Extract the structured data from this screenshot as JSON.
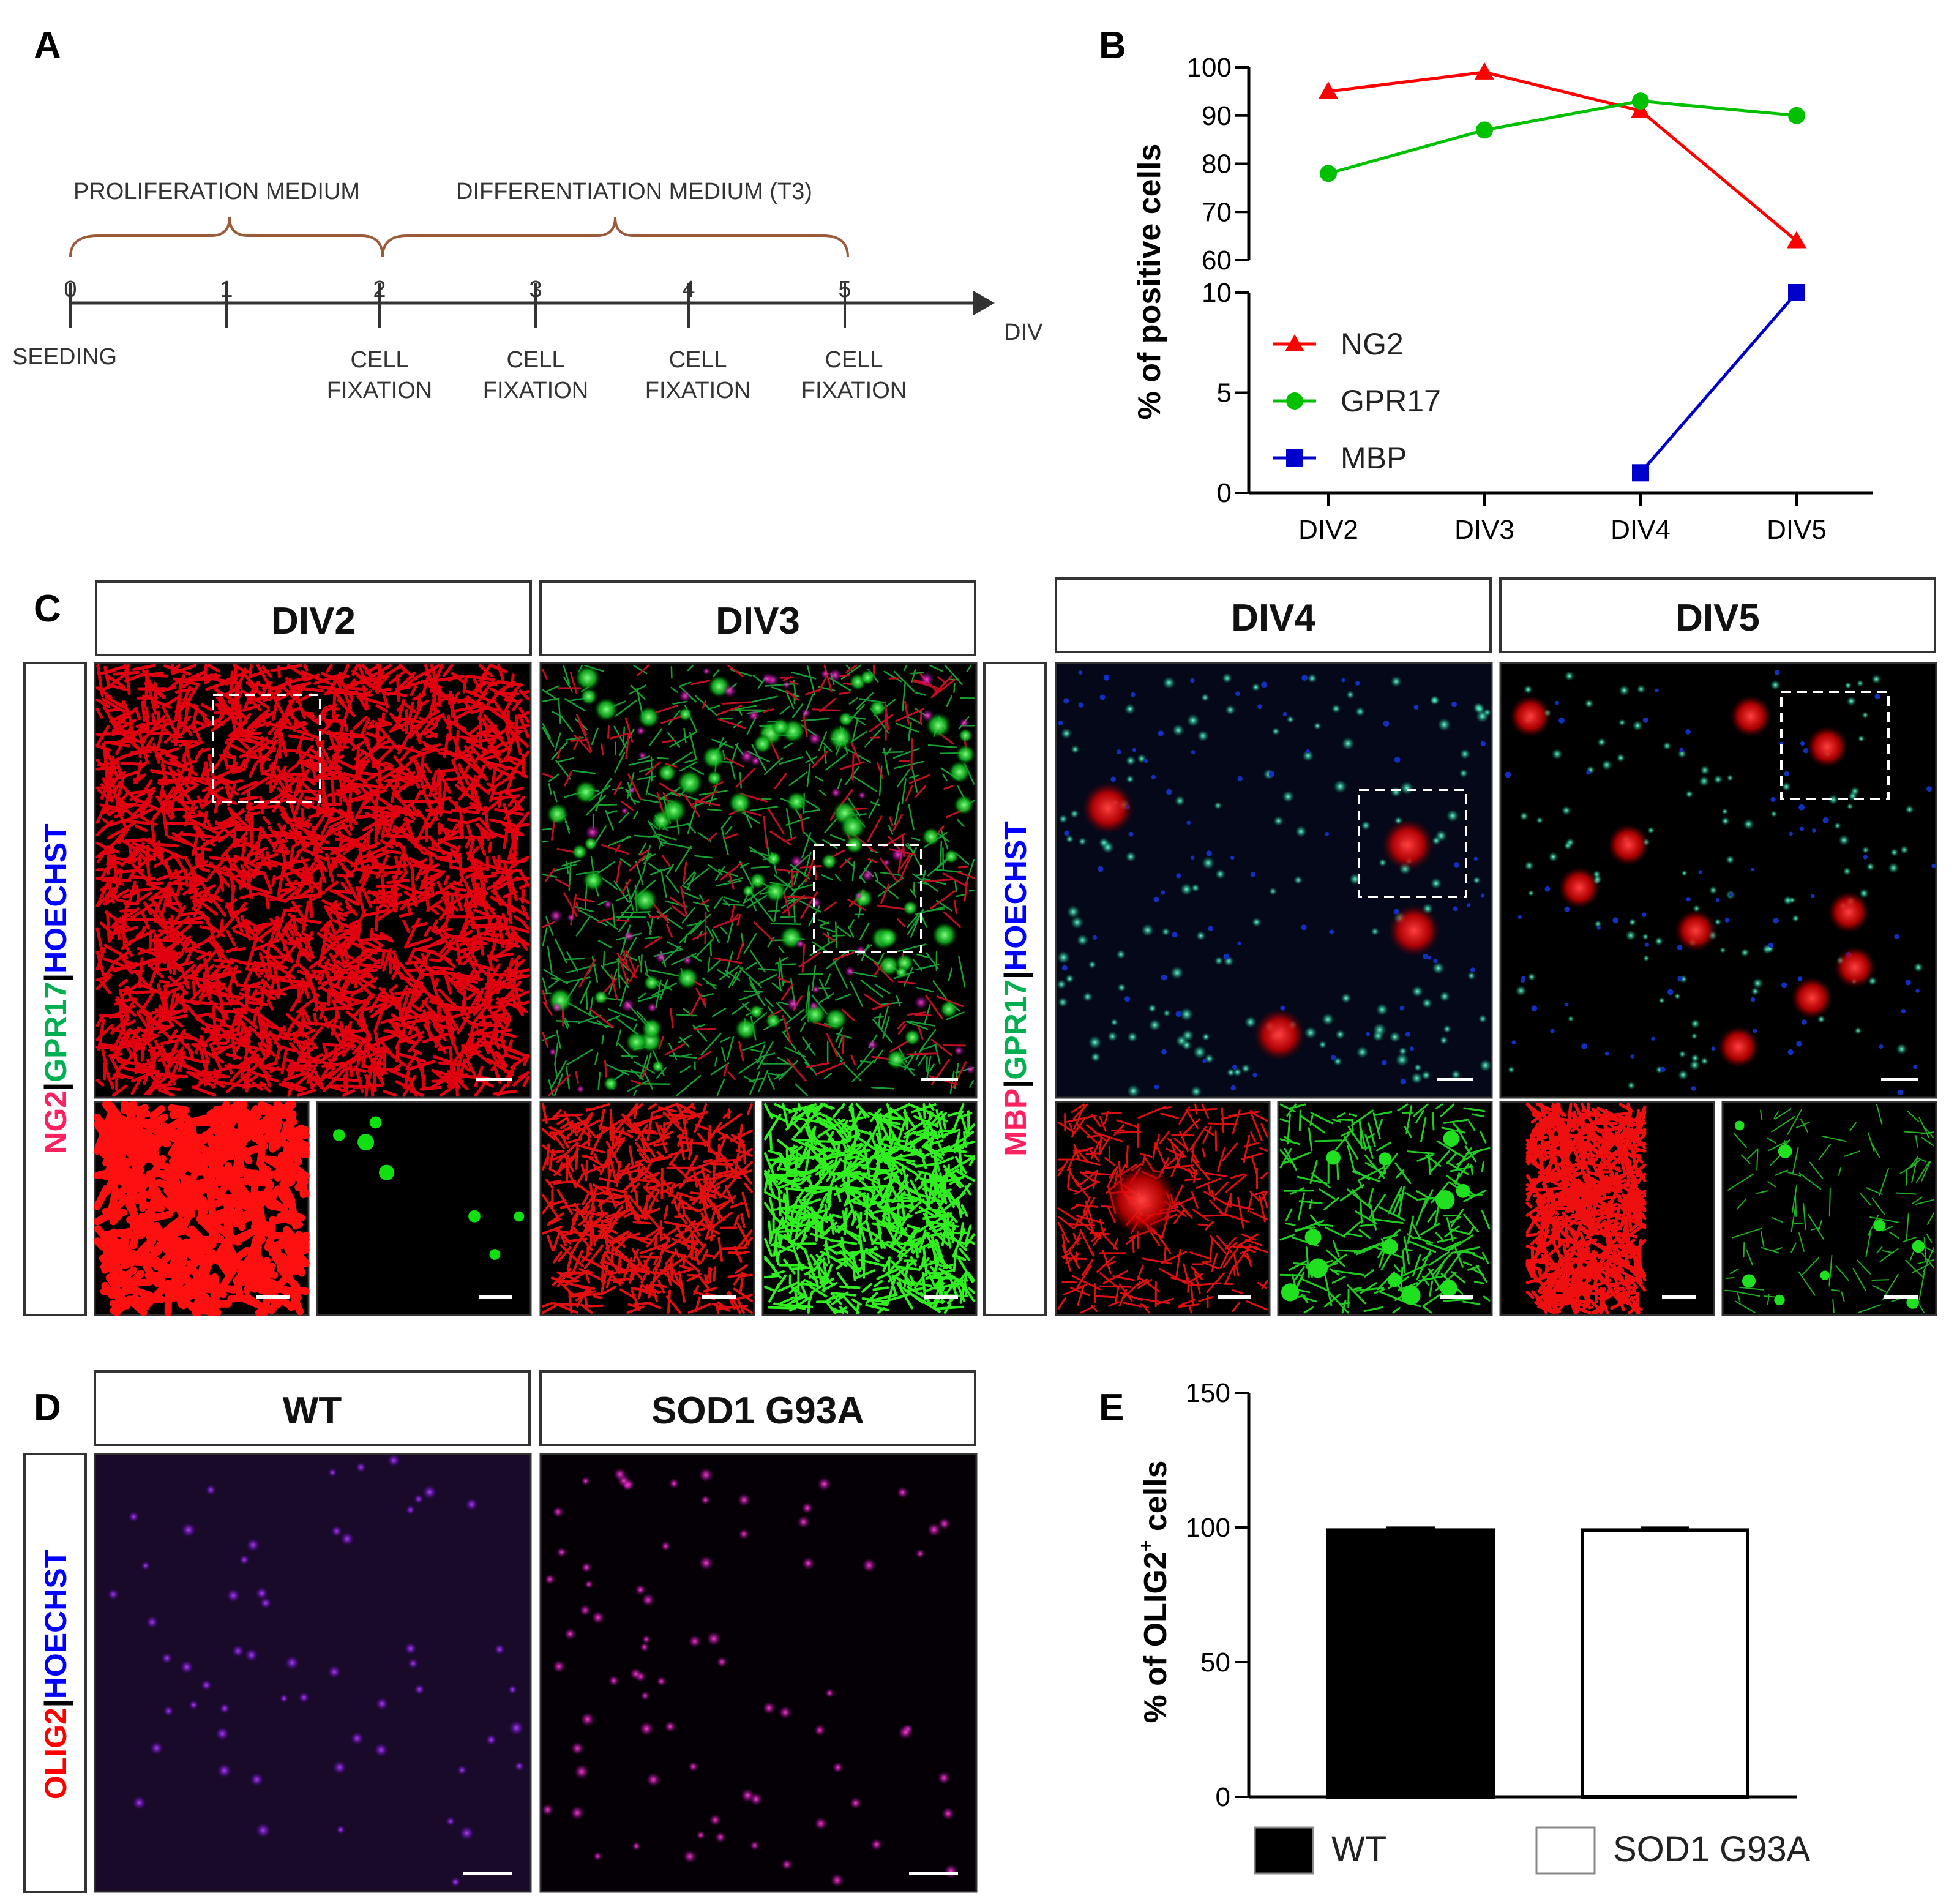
{
  "panel_letters": {
    "a": "A",
    "b": "B",
    "c": "C",
    "d": "D",
    "e": "E"
  },
  "colors": {
    "ng2": "#ff0000",
    "gpr17": "#00c000",
    "mbp": "#0000cc",
    "hoechst": "#0000ff",
    "brace": "#9b5a3a"
  },
  "timeline": {
    "proliferation_label": "PROLIFERATION MEDIUM",
    "differentiation_label": "DIFFERENTIATION MEDIUM (T3)",
    "ticks": [
      "0",
      "1",
      "2",
      "3",
      "4",
      "5"
    ],
    "axis_label": "DIV",
    "seeding_label": "SEEDING",
    "fixations": [
      {
        "line1": "CELL",
        "line2": "FIXATION"
      },
      {
        "line1": "CELL",
        "line2": "FIXATION"
      },
      {
        "line1": "CELL",
        "line2": "FIXATION"
      },
      {
        "line1": "CELL",
        "line2": "FIXATION"
      }
    ]
  },
  "chart_data": [
    {
      "panel": "B",
      "type": "line",
      "categories": [
        "DIV2",
        "DIV3",
        "DIV4",
        "DIV5"
      ],
      "ylabel": "% of positive cells",
      "upper_axis": {
        "ylim": [
          60,
          100
        ],
        "ticks": [
          "100",
          "90",
          "80",
          "70",
          "60"
        ]
      },
      "lower_axis": {
        "ylim": [
          0,
          10
        ],
        "ticks": [
          "10",
          "5",
          "0"
        ]
      },
      "series": [
        {
          "name": "NG2",
          "color": "#ff0000",
          "marker": "triangle",
          "values": [
            95,
            99,
            91,
            64
          ]
        },
        {
          "name": "GPR17",
          "color": "#00c000",
          "marker": "circle",
          "values": [
            78,
            87,
            93,
            90
          ]
        },
        {
          "name": "MBP",
          "color": "#0000cc",
          "marker": "square",
          "values": [
            null,
            null,
            1,
            10
          ]
        }
      ],
      "legend_position": "left-middle"
    },
    {
      "panel": "E",
      "type": "bar",
      "categories": [
        "WT",
        "SOD1 G93A"
      ],
      "values": [
        99,
        99
      ],
      "ylabel_main": "% of OLIG2",
      "ylabel_sup": "+",
      "ylabel_tail": " cells",
      "ylim": [
        0,
        150
      ],
      "yticks": [
        "150",
        "100",
        "50",
        "0"
      ],
      "legend": [
        {
          "name": "WT",
          "fill": "#000000"
        },
        {
          "name": "SOD1 G93A",
          "fill": "#ffffff"
        }
      ]
    }
  ],
  "panel_c": {
    "headers": [
      "DIV2",
      "DIV3",
      "DIV4",
      "DIV5"
    ],
    "side_label_left": {
      "part1": "NG2",
      "sep1": "|",
      "part2": "GPR17",
      "sep2": "|",
      "part3": "HOECHST"
    },
    "side_label_right": {
      "part1": "MBP",
      "sep1": "|",
      "part2": "GPR17",
      "sep2": "|",
      "part3": "HOECHST"
    }
  },
  "panel_d": {
    "headers": [
      "WT",
      "SOD1 G93A"
    ],
    "side_label": {
      "part1": "OLIG2",
      "sep": "|",
      "part2": "HOECHST"
    }
  }
}
